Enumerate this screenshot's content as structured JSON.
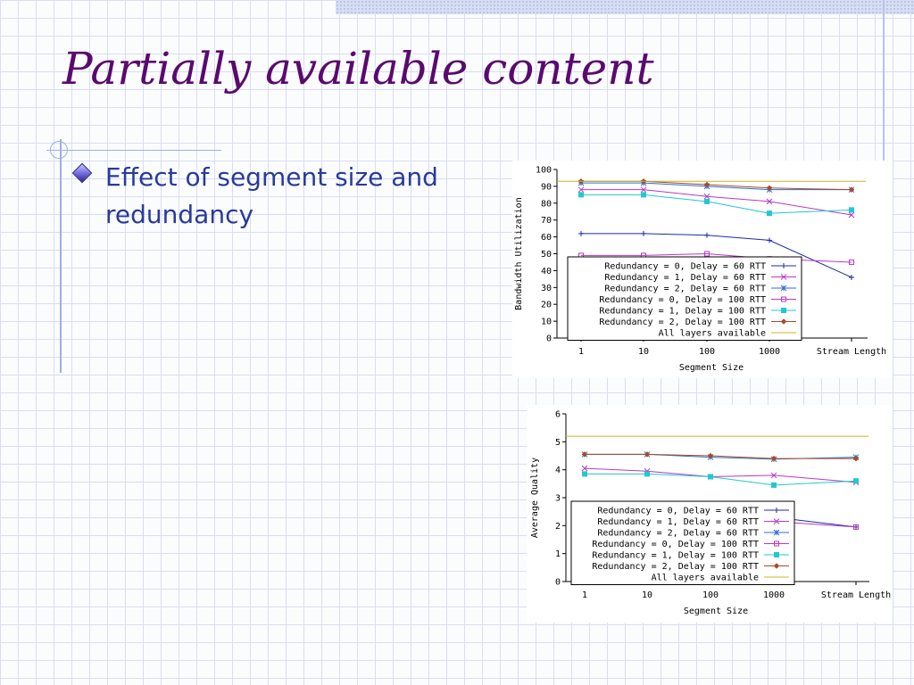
{
  "slide": {
    "title": "Partially available content",
    "bullet": "Effect of segment size and redundancy"
  },
  "colors": {
    "title": "#5a0a6e",
    "bullet_text": "#283a9b",
    "grid": "#d9def0"
  },
  "chart_data": [
    {
      "type": "line",
      "categories": [
        "1",
        "10",
        "100",
        "1000",
        "Stream Length"
      ],
      "xlabel": "Segment Size",
      "ylabel": "Bandwidth Utilization",
      "ylim": [
        0,
        100
      ],
      "yticks": [
        0,
        10,
        20,
        30,
        40,
        50,
        60,
        70,
        80,
        90,
        100
      ],
      "grid": false,
      "legend_position": "lower-center",
      "series": [
        {
          "name": "Redundancy = 0, Delay = 60 RTT",
          "color": "#1c2aa8",
          "marker": "plus",
          "values": [
            62,
            62,
            61,
            58,
            36
          ]
        },
        {
          "name": "Redundancy = 1, Delay = 60 RTT",
          "color": "#b838c8",
          "marker": "x",
          "values": [
            88,
            88,
            84,
            81,
            73
          ]
        },
        {
          "name": "Redundancy = 2, Delay = 60 RTT",
          "color": "#2c70c8",
          "marker": "star",
          "values": [
            92,
            92,
            90,
            88,
            88
          ]
        },
        {
          "name": "Redundancy = 0, Delay = 100 RTT",
          "color": "#b838c8",
          "marker": "square",
          "values": [
            49,
            49,
            50,
            47,
            45
          ]
        },
        {
          "name": "Redundancy = 1, Delay = 100 RTT",
          "color": "#20c8d0",
          "marker": "filled-square",
          "values": [
            85,
            85,
            81,
            74,
            76
          ]
        },
        {
          "name": "Redundancy = 2, Delay = 100 RTT",
          "color": "#a84a2a",
          "marker": "diamond",
          "values": [
            93,
            93,
            91,
            89,
            88
          ]
        },
        {
          "name": "All layers available",
          "color": "#c8b428",
          "marker": "none",
          "values": [
            93,
            93,
            93,
            93,
            93
          ]
        }
      ]
    },
    {
      "type": "line",
      "categories": [
        "1",
        "10",
        "100",
        "1000",
        "Stream Length"
      ],
      "xlabel": "Segment Size",
      "ylabel": "Average Quality",
      "ylim": [
        0,
        6
      ],
      "yticks": [
        0,
        1,
        2,
        3,
        4,
        5,
        6
      ],
      "grid": false,
      "legend_position": "lower-center",
      "series": [
        {
          "name": "Redundancy = 0, Delay = 60 RTT",
          "color": "#1c2aa8",
          "marker": "plus",
          "values": [
            2.3,
            2.3,
            2.3,
            2.3,
            1.95
          ]
        },
        {
          "name": "Redundancy = 1, Delay = 60 RTT",
          "color": "#b838c8",
          "marker": "x",
          "values": [
            4.05,
            3.95,
            3.75,
            3.8,
            3.55
          ]
        },
        {
          "name": "Redundancy = 2, Delay = 60 RTT",
          "color": "#2c70c8",
          "marker": "star",
          "values": [
            4.55,
            4.55,
            4.45,
            4.38,
            4.45
          ]
        },
        {
          "name": "Redundancy = 0, Delay = 100 RTT",
          "color": "#b838c8",
          "marker": "square",
          "values": [
            2.15,
            2.15,
            2.2,
            2.15,
            1.95
          ]
        },
        {
          "name": "Redundancy = 1, Delay = 100 RTT",
          "color": "#20c8d0",
          "marker": "filled-square",
          "values": [
            3.85,
            3.85,
            3.75,
            3.45,
            3.6
          ]
        },
        {
          "name": "Redundancy = 2, Delay = 100 RTT",
          "color": "#a84a2a",
          "marker": "diamond",
          "values": [
            4.55,
            4.55,
            4.5,
            4.4,
            4.4
          ]
        },
        {
          "name": "All layers available",
          "color": "#c8b428",
          "marker": "none",
          "values": [
            5.2,
            5.2,
            5.2,
            5.2,
            5.2
          ]
        }
      ]
    }
  ]
}
